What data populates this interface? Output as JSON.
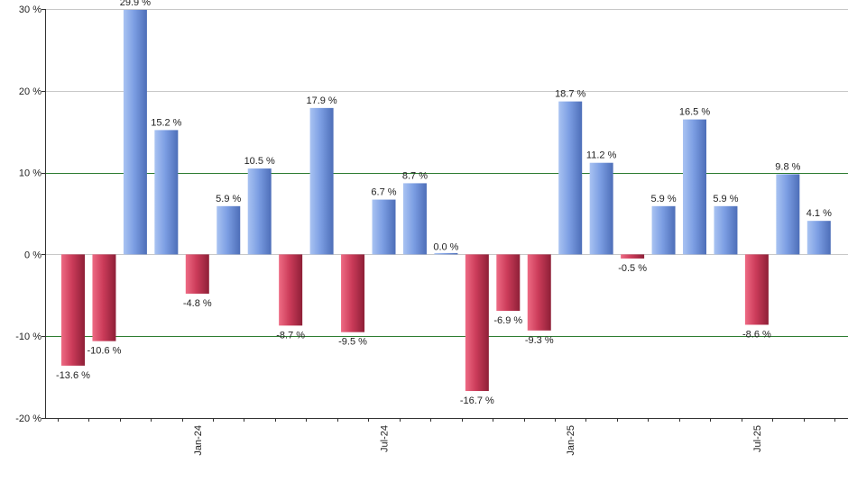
{
  "chart_data": {
    "type": "bar",
    "title": "",
    "xlabel": "",
    "ylabel": "",
    "ylim": [
      -20,
      30
    ],
    "y_ticks": [
      -20,
      -10,
      0,
      10,
      20,
      30
    ],
    "y_tick_labels": [
      "-20 %",
      "-10 %",
      "0 %",
      "10 %",
      "20 %",
      "30 %"
    ],
    "reference_lines": [
      10,
      -10
    ],
    "grid": true,
    "legend": "none",
    "x_tick_labels": [
      {
        "label": "Jan-24",
        "index": 4.5
      },
      {
        "label": "Jul-24",
        "index": 10.5
      },
      {
        "label": "Jan-25",
        "index": 16.5
      },
      {
        "label": "Jul-25",
        "index": 22.5
      }
    ],
    "values": [
      -13.6,
      -10.6,
      29.9,
      15.2,
      -4.8,
      5.9,
      10.5,
      -8.7,
      17.9,
      -9.5,
      6.7,
      8.7,
      0.0,
      -16.7,
      -6.9,
      -9.3,
      18.7,
      11.2,
      -0.5,
      5.9,
      16.5,
      5.9,
      -8.6,
      9.8,
      4.1
    ],
    "value_labels": [
      "-13.6 %",
      "-10.6 %",
      "29.9 %",
      "15.2 %",
      "-4.8 %",
      "5.9 %",
      "10.5 %",
      "-8.7 %",
      "17.9 %",
      "-9.5 %",
      "6.7 %",
      "8.7 %",
      "0.0 %",
      "-16.7 %",
      "-6.9 %",
      "-9.3 %",
      "18.7 %",
      "11.2 %",
      "-0.5 %",
      "5.9 %",
      "16.5 %",
      "5.9 %",
      "-8.6 %",
      "9.8 %",
      "4.1 %"
    ],
    "colors": {
      "positive": "#6f93d8",
      "negative": "#c23550",
      "reference_line": "#2e7d32",
      "grid": "#c8c8c8",
      "axis": "#333333",
      "text": "#222222"
    }
  }
}
